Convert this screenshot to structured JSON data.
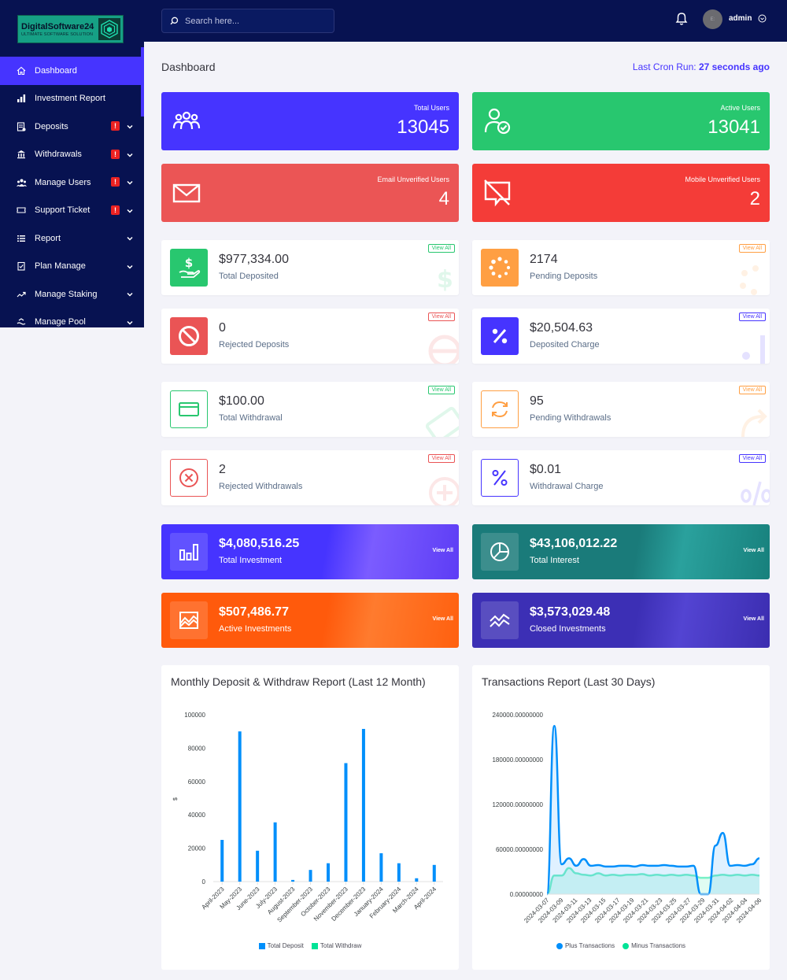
{
  "brand": {
    "title": "DigitalSoftware24",
    "subtitle": "ULTIMATE SOFTWARE SOLUTION"
  },
  "sidebar": {
    "items": [
      {
        "label": "Dashboard",
        "icon": "home-icon",
        "active": true
      },
      {
        "label": "Investment Report",
        "icon": "bar-chart-icon"
      },
      {
        "label": "Deposits",
        "icon": "deposit-icon",
        "badge": "!",
        "chevron": true
      },
      {
        "label": "Withdrawals",
        "icon": "bank-icon",
        "badge": "!",
        "chevron": true
      },
      {
        "label": "Manage Users",
        "icon": "users-icon",
        "badge": "!",
        "chevron": true
      },
      {
        "label": "Support Ticket",
        "icon": "ticket-icon",
        "badge": "!",
        "chevron": true
      },
      {
        "label": "Report",
        "icon": "list-icon",
        "chevron": true
      },
      {
        "label": "Plan Manage",
        "icon": "clipboard-icon",
        "chevron": true
      },
      {
        "label": "Manage Staking",
        "icon": "trend-icon",
        "chevron": true
      },
      {
        "label": "Manage Pool",
        "icon": "pool-icon",
        "chevron": true
      }
    ]
  },
  "topbar": {
    "search_placeholder": "Search here...",
    "avatar_text": "E:",
    "user": "admin"
  },
  "header": {
    "title": "Dashboard",
    "cron_label": "Last Cron Run:",
    "cron_value": "27 seconds ago"
  },
  "stats": [
    {
      "label": "Total Users",
      "value": "13045",
      "color": "#4634ff"
    },
    {
      "label": "Active Users",
      "value": "13041",
      "color": "#28c76f"
    },
    {
      "label": "Email Unverified Users",
      "value": "4",
      "color": "#eb5555"
    },
    {
      "label": "Mobile Unverified Users",
      "value": "2",
      "color": "#f43c38"
    }
  ],
  "widgets": [
    {
      "value": "$977,334.00",
      "label": "Total Deposited",
      "view": "View All",
      "color": "#28c76f"
    },
    {
      "value": "2174",
      "label": "Pending Deposits",
      "view": "View All",
      "color": "#ff9f43"
    },
    {
      "value": "0",
      "label": "Rejected Deposits",
      "view": "View All",
      "color": "#ea5455"
    },
    {
      "value": "$20,504.63",
      "label": "Deposited Charge",
      "view": "View All",
      "color": "#4634ff"
    },
    {
      "value": "$100.00",
      "label": "Total Withdrawal",
      "view": "View All",
      "color": "#28c76f"
    },
    {
      "value": "95",
      "label": "Pending Withdrawals",
      "view": "View All",
      "color": "#ff9f43"
    },
    {
      "value": "2",
      "label": "Rejected Withdrawals",
      "view": "View All",
      "color": "#ea5455"
    },
    {
      "value": "$0.01",
      "label": "Withdrawal Charge",
      "view": "View All",
      "color": "#4634ff"
    }
  ],
  "investments": [
    {
      "value": "$4,080,516.25",
      "label": "Total Investment",
      "view": "View All"
    },
    {
      "value": "$43,106,012.22",
      "label": "Total Interest",
      "view": "View All"
    },
    {
      "value": "$507,486.77",
      "label": "Active Investments",
      "view": "View All"
    },
    {
      "value": "$3,573,029.48",
      "label": "Closed Investments",
      "view": "View All"
    }
  ],
  "chart_data": [
    {
      "type": "bar",
      "title": "Monthly Deposit & Withdraw Report (Last 12 Month)",
      "ylabel": "$",
      "ylim": [
        0,
        100000
      ],
      "yticks": [
        "100000",
        "80000",
        "60000",
        "40000",
        "20000",
        "0"
      ],
      "categories": [
        "April-2023",
        "May-2023",
        "June-2023",
        "July-2023",
        "August-2023",
        "September-2023",
        "October-2023",
        "November-2023",
        "December-2023",
        "January-2024",
        "February-2024",
        "March-2024",
        "April-2024"
      ],
      "series": [
        {
          "name": "Total Deposit",
          "color": "#008ffb",
          "values": [
            25000,
            90000,
            18500,
            35500,
            1000,
            7000,
            11000,
            71000,
            91500,
            17000,
            11000,
            2000,
            10000
          ]
        },
        {
          "name": "Total Withdraw",
          "color": "#00e396",
          "values": [
            0,
            0,
            0,
            0,
            0,
            0,
            0,
            0,
            0,
            0,
            0,
            0,
            0
          ]
        }
      ]
    },
    {
      "type": "area",
      "title": "Transactions Report (Last 30 Days)",
      "ylim": [
        0,
        240000
      ],
      "yticks": [
        "240000.00000000",
        "180000.00000000",
        "120000.00000000",
        "60000.00000000",
        "0.00000000"
      ],
      "xtick_labels": [
        "2024-03-07",
        "2024-03-09",
        "2024-03-11",
        "2024-03-13",
        "2024-03-15",
        "2024-03-17",
        "2024-03-19",
        "2024-03-21",
        "2024-03-23",
        "2024-03-25",
        "2024-03-27",
        "2024-03-29",
        "2024-03-31",
        "2024-04-02",
        "2024-04-04",
        "2024-04-06"
      ],
      "series": [
        {
          "name": "Plus Transactions",
          "color": "#008ffb",
          "values": [
            0,
            225000,
            40000,
            48000,
            38000,
            47000,
            38000,
            39000,
            37000,
            37000,
            38000,
            38000,
            37000,
            39000,
            38000,
            38000,
            39000,
            38000,
            37000,
            37000,
            38000,
            0,
            0,
            65000,
            82000,
            38000,
            39000,
            38000,
            40000,
            48000
          ]
        },
        {
          "name": "Minus Transactions",
          "color": "#00e396",
          "values": [
            0,
            25000,
            25000,
            35000,
            28000,
            26000,
            25000,
            28000,
            25000,
            26000,
            25000,
            26000,
            26000,
            27000,
            25000,
            26000,
            25000,
            26000,
            25000,
            26000,
            25000,
            22000,
            22000,
            25000,
            26000,
            25000,
            26000,
            25000,
            26000,
            25000
          ]
        }
      ]
    }
  ]
}
